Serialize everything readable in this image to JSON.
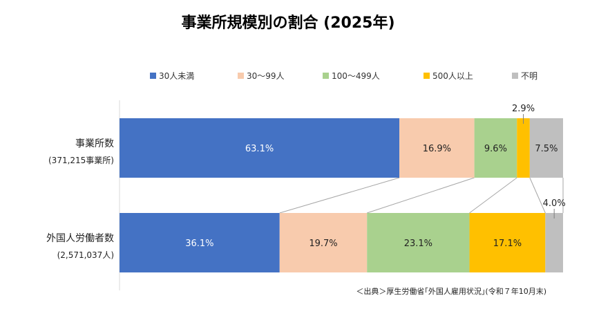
{
  "chart_data": {
    "type": "bar",
    "orientation": "horizontal",
    "stacked": true,
    "percent": true,
    "title": "事業所規模別の割合 (2025年)",
    "categories": [
      {
        "label": "事業所数",
        "sublabel": "(371,215事業所)"
      },
      {
        "label": "外国人労働者数",
        "sublabel": "(2,571,037人)"
      }
    ],
    "series": [
      {
        "name": "30人未満",
        "color": "#4472C4",
        "values": [
          63.1,
          36.1
        ],
        "labels": [
          "63.1%",
          "36.1%"
        ],
        "label_color": "#ffffff"
      },
      {
        "name": "30〜99人",
        "color": "#F8CBAD",
        "values": [
          16.9,
          19.7
        ],
        "labels": [
          "16.9%",
          "19.7%"
        ],
        "label_color": "#222222"
      },
      {
        "name": "100〜499人",
        "color": "#A9D18E",
        "values": [
          9.6,
          23.1
        ],
        "labels": [
          "9.6%",
          "23.1%"
        ],
        "label_color": "#222222"
      },
      {
        "name": "500人以上",
        "color": "#FFC000",
        "values": [
          2.9,
          17.1
        ],
        "labels": [
          "2.9%",
          "17.1%"
        ],
        "label_color": "#222222"
      },
      {
        "name": "不明",
        "color": "#BFBFBF",
        "values": [
          7.5,
          4.0
        ],
        "labels": [
          "7.5%",
          "4.0%"
        ],
        "label_color": "#222222"
      }
    ],
    "xlim": [
      0,
      100
    ],
    "grid": false,
    "legend_position": "top",
    "series_lines": true
  },
  "source": "＜出典＞厚生労働省｢外国人雇用状況｣(令和７年10月末)"
}
